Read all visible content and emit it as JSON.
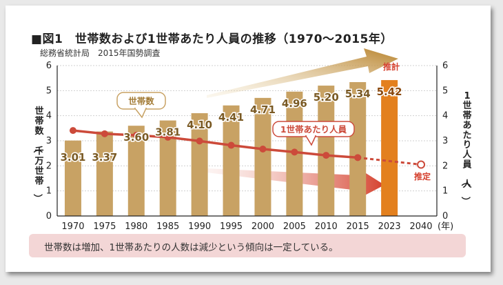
{
  "title": "■図1　世帯数および1世帯あたり人員の推移（1970〜2015年）",
  "source": "総務省統計局　2015年国勢調査",
  "caption": "世帯数は増加、1世帯あたりの人数は減少という傾向は一定している。",
  "chart_data": {
    "type": "bar",
    "categories": [
      "1970",
      "1975",
      "1980",
      "1985",
      "1990",
      "1995",
      "2000",
      "2005",
      "2010",
      "2015",
      "2023",
      "2040"
    ],
    "x_unit": "(年)",
    "ylim": [
      0,
      6
    ],
    "y_ticks": [
      "0",
      "1",
      "2",
      "3",
      "4",
      "5",
      "6"
    ],
    "left_axis_label": "世帯数（千万世帯）",
    "right_axis_label": "1世帯あたり人員（人）",
    "series": [
      {
        "name": "世帯数",
        "values": [
          3.01,
          3.37,
          3.6,
          3.81,
          4.1,
          4.41,
          4.71,
          4.96,
          5.2,
          5.34,
          5.42,
          null
        ],
        "labels": [
          "3.01",
          "3.37",
          "3.60",
          "3.81",
          "4.10",
          "4.41",
          "4.71",
          "4.96",
          "5.20",
          "5.34",
          "5.42",
          ""
        ],
        "color": "#c8a264",
        "highlight_color": "#e3801e"
      },
      {
        "name": "1世帯あたり人員",
        "values": [
          3.41,
          3.28,
          3.22,
          3.14,
          2.99,
          2.82,
          2.67,
          2.55,
          2.42,
          2.33,
          null,
          2.05
        ],
        "color": "#cc4a3a"
      }
    ],
    "annotations": {
      "estimate_bar": "推計",
      "estimate_line": "推定"
    },
    "grid": true
  }
}
